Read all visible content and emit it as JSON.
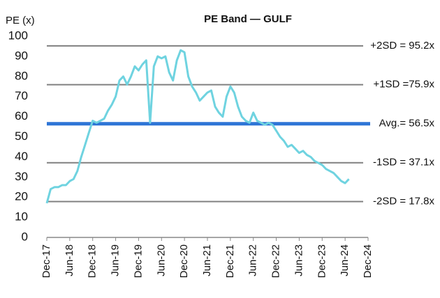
{
  "chart_data": {
    "type": "line",
    "title": "PE Band — GULF",
    "y_label": "PE (x)",
    "x": [
      "Dec-17",
      "Jan-18",
      "Feb-18",
      "Mar-18",
      "Apr-18",
      "May-18",
      "Jun-18",
      "Jul-18",
      "Aug-18",
      "Sep-18",
      "Oct-18",
      "Nov-18",
      "Dec-18",
      "Jan-19",
      "Feb-19",
      "Mar-19",
      "Apr-19",
      "May-19",
      "Jun-19",
      "Jul-19",
      "Aug-19",
      "Sep-19",
      "Oct-19",
      "Nov-19",
      "Dec-19",
      "Jan-20",
      "Feb-20",
      "Mar-20",
      "Apr-20",
      "May-20",
      "Jun-20",
      "Jul-20",
      "Aug-20",
      "Sep-20",
      "Oct-20",
      "Nov-20",
      "Dec-20",
      "Jan-21",
      "Feb-21",
      "Mar-21",
      "Apr-21",
      "May-21",
      "Jun-21",
      "Jul-21",
      "Aug-21",
      "Sep-21",
      "Oct-21",
      "Nov-21",
      "Dec-21",
      "Jan-22",
      "Feb-22",
      "Mar-22",
      "Apr-22",
      "May-22",
      "Jun-22",
      "Jul-22",
      "Aug-22",
      "Sep-22",
      "Oct-22",
      "Nov-22",
      "Dec-22",
      "Jan-23",
      "Feb-23",
      "Mar-23",
      "Apr-23",
      "May-23",
      "Jun-23",
      "Jul-23",
      "Aug-23",
      "Sep-23",
      "Oct-23",
      "Nov-23",
      "Dec-23",
      "Jan-24",
      "Feb-24",
      "Mar-24",
      "Apr-24",
      "May-24",
      "Jun-24",
      "Jul-24"
    ],
    "series": [
      {
        "name": "PE",
        "color": "#6fd3e0",
        "values": [
          17,
          24,
          25,
          25,
          26,
          26,
          28,
          29,
          33,
          40,
          46,
          52,
          58,
          57,
          58,
          59,
          63,
          66,
          70,
          78,
          80,
          76,
          80,
          85,
          83,
          86,
          88,
          57,
          85,
          90,
          89,
          90,
          82,
          78,
          88,
          93,
          92,
          80,
          75,
          72,
          68,
          70,
          72,
          73,
          65,
          62,
          60,
          70,
          75,
          72,
          65,
          60,
          58,
          57,
          62,
          58,
          57,
          56,
          57,
          56,
          53,
          50,
          48,
          45,
          46,
          44,
          42,
          43,
          41,
          40,
          38,
          37,
          36,
          34,
          33,
          32,
          30,
          28,
          27,
          29
        ]
      }
    ],
    "bands": [
      {
        "label": "+2SD = 95.2x",
        "value": 95.2,
        "color": "#808080"
      },
      {
        "label": "+1SD =75.9x",
        "value": 75.9,
        "color": "#808080"
      },
      {
        "label": "Avg.= 56.5x",
        "value": 56.5,
        "color": "#2e75d6"
      },
      {
        "label": "-1SD = 37.1x",
        "value": 37.1,
        "color": "#808080"
      },
      {
        "label": "-2SD = 17.8x",
        "value": 17.8,
        "color": "#808080"
      }
    ],
    "xlim": [
      "Dec-17",
      "Dec-24"
    ],
    "xticks": [
      "Dec-17",
      "Jun-18",
      "Dec-18",
      "Jun-19",
      "Dec-19",
      "Jun-20",
      "Dec-20",
      "Jun-21",
      "Dec-21",
      "Jun-22",
      "Dec-22",
      "Jun-23",
      "Dec-23",
      "Jun-24",
      "Dec-24"
    ],
    "ylim": [
      0,
      100
    ],
    "yticks": [
      0,
      10,
      20,
      30,
      40,
      50,
      60,
      70,
      80,
      90,
      100
    ],
    "grid": false
  }
}
